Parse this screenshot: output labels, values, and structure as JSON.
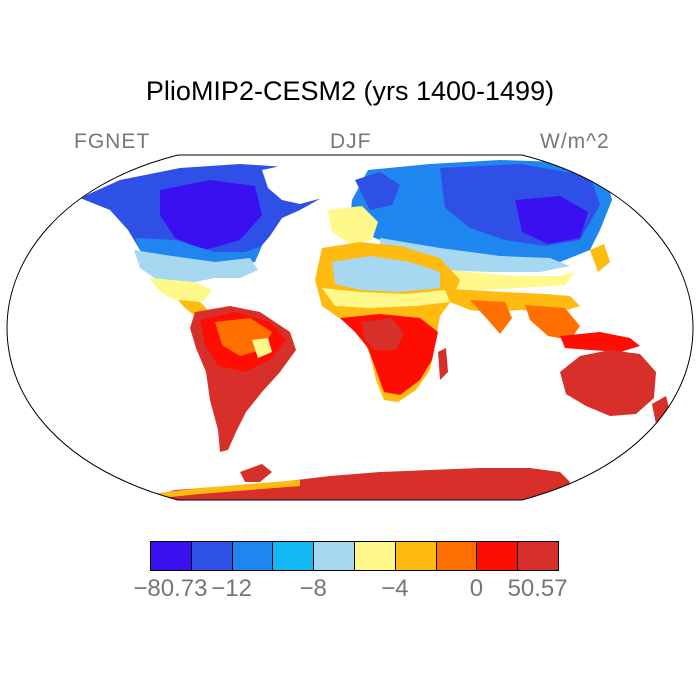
{
  "title": "PlioMIP2-CESM2 (yrs 1400-1499)",
  "label_left": "FGNET",
  "label_center": "DJF",
  "label_right": "W/m^2",
  "colorbar": {
    "colors": [
      "#3a10f0",
      "#2f50e6",
      "#1f86f0",
      "#14b8f5",
      "#a6d8f2",
      "#fff88a",
      "#ffbb10",
      "#ff7000",
      "#fe0e02",
      "#d7302b"
    ],
    "tick_labels": [
      "−80.73",
      "−12",
      "−8",
      "−4",
      "0",
      "50.57"
    ]
  },
  "map": {
    "projection": "Robinson",
    "ocean": "blank",
    "land_colors": {
      "very_cold": "#3a10f0",
      "cold": "#2f50e6",
      "cool": "#1f86f0",
      "mild_cool": "#14b8f5",
      "light": "#a6d8f2",
      "pale_yellow": "#fff88a",
      "orange": "#ffbb10",
      "dark_orange": "#ff7000",
      "red": "#fe0e02",
      "dark_red": "#d7302b"
    }
  }
}
